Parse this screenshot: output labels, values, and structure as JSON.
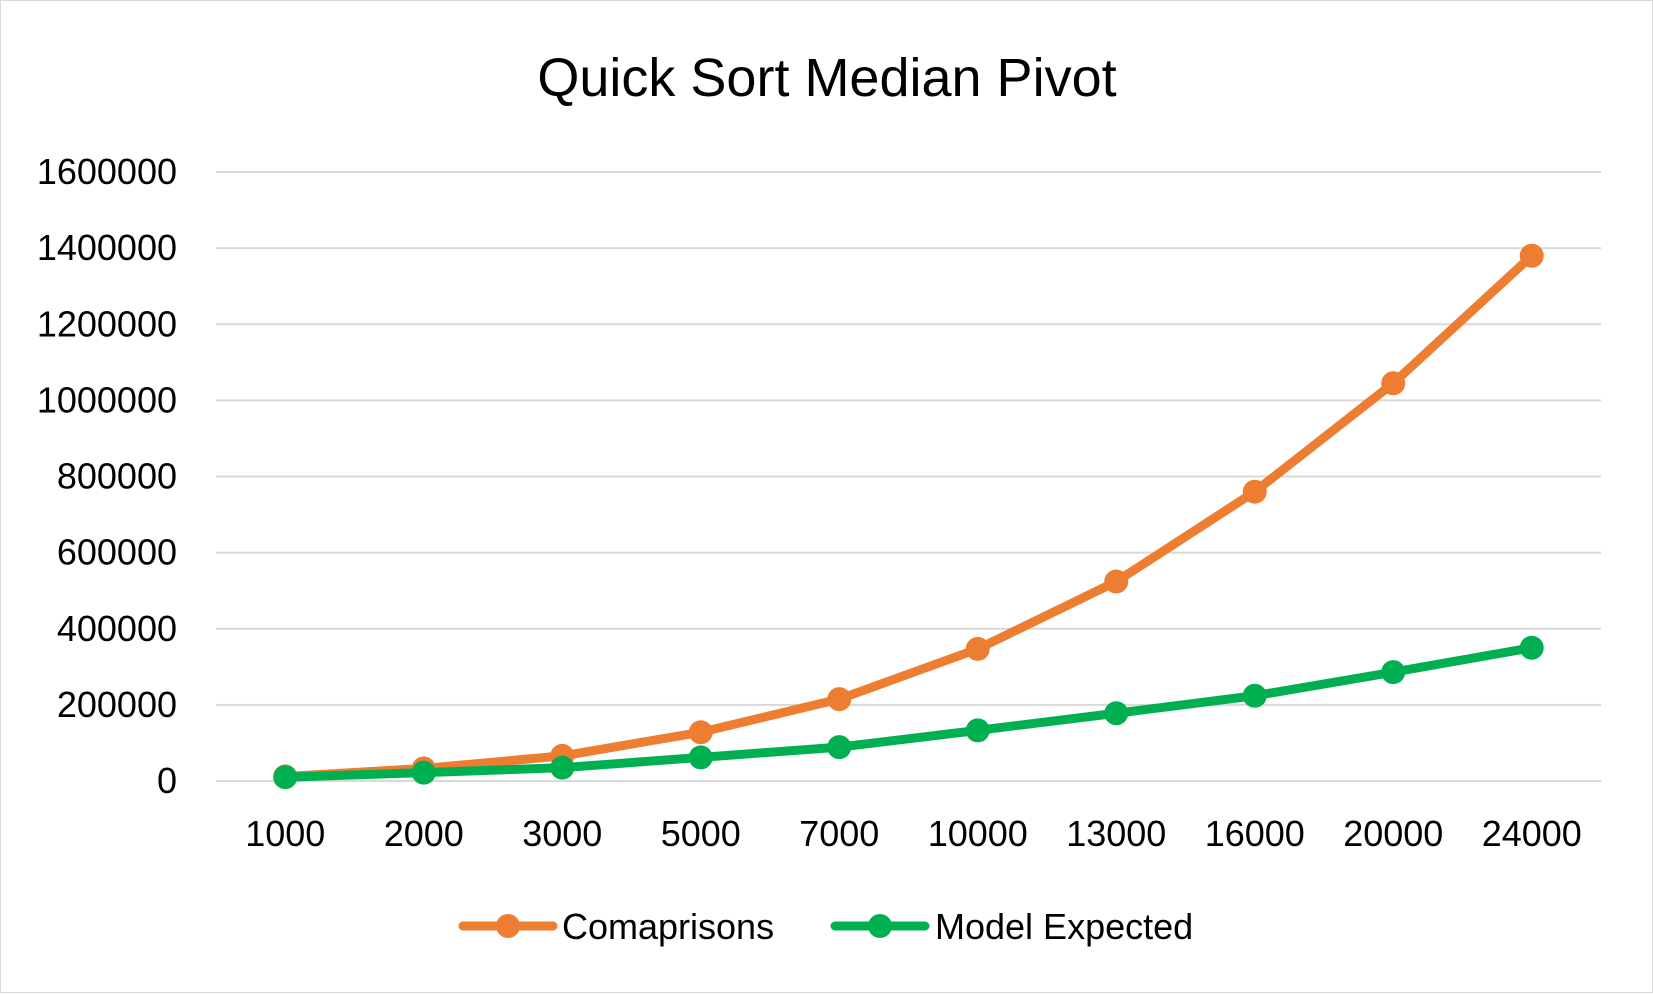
{
  "chart_data": {
    "type": "line",
    "title": "Quick Sort Median Pivot",
    "xlabel": "",
    "ylabel": "",
    "categories": [
      "1000",
      "2000",
      "3000",
      "5000",
      "7000",
      "10000",
      "13000",
      "16000",
      "20000",
      "24000"
    ],
    "y_ticks": [
      "0",
      "200000",
      "400000",
      "600000",
      "800000",
      "1000000",
      "1200000",
      "1400000",
      "1600000"
    ],
    "ylim": [
      0,
      1600000
    ],
    "grid": true,
    "legend_position": "bottom",
    "series": [
      {
        "name": "Comaprisons",
        "color": "#ED7D31",
        "values": [
          12000,
          33000,
          66000,
          128000,
          215000,
          347000,
          524000,
          760000,
          1045000,
          1380000
        ]
      },
      {
        "name": "Model Expected",
        "color": "#00B050",
        "values": [
          10000,
          22000,
          35000,
          62000,
          89000,
          133000,
          178000,
          224000,
          286000,
          350000
        ]
      }
    ]
  }
}
